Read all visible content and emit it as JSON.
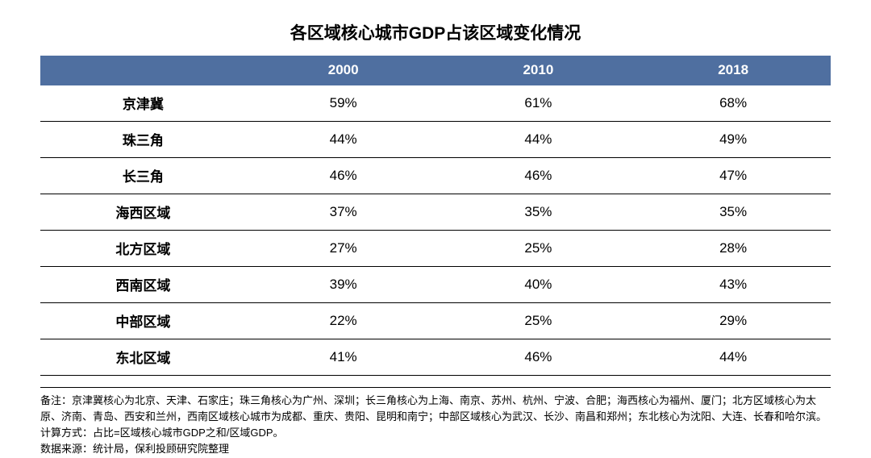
{
  "title": "各区域核心城市GDP占该区域变化情况",
  "table": {
    "header_bg": "#4f6fa0",
    "header_fg": "#ffffff",
    "row_border": "#000000",
    "title_fontsize": 21,
    "header_fontsize": 17,
    "cell_fontsize": 17,
    "footnote_fontsize": 13,
    "col_widths_pct": [
      26,
      24.666,
      24.666,
      24.666
    ],
    "columns": [
      "",
      "2000",
      "2010",
      "2018"
    ],
    "rows": [
      {
        "label": "京津冀",
        "values": [
          "59%",
          "61%",
          "68%"
        ]
      },
      {
        "label": "珠三角",
        "values": [
          "44%",
          "44%",
          "49%"
        ]
      },
      {
        "label": "长三角",
        "values": [
          "46%",
          "46%",
          "47%"
        ]
      },
      {
        "label": "海西区域",
        "values": [
          "37%",
          "35%",
          "35%"
        ]
      },
      {
        "label": "北方区域",
        "values": [
          "27%",
          "25%",
          "28%"
        ]
      },
      {
        "label": "西南区域",
        "values": [
          "39%",
          "40%",
          "43%"
        ]
      },
      {
        "label": "中部区域",
        "values": [
          "22%",
          "25%",
          "29%"
        ]
      },
      {
        "label": "东北区域",
        "values": [
          "41%",
          "46%",
          "44%"
        ]
      }
    ]
  },
  "footnote": "备注：京津冀核心为北京、天津、石家庄；珠三角核心为广州、深圳；长三角核心为上海、南京、苏州、杭州、宁波、合肥；海西核心为福州、厦门；北方区域核心为太原、济南、青岛、西安和兰州，西南区域核心城市为成都、重庆、贵阳、昆明和南宁；中部区域核心为武汉、长沙、南昌和郑州；东北核心为沈阳、大连、长春和哈尔滨。计算方式：占比=区域核心城市GDP之和/区域GDP。\n数据来源：统计局，保利投顾研究院整理"
}
